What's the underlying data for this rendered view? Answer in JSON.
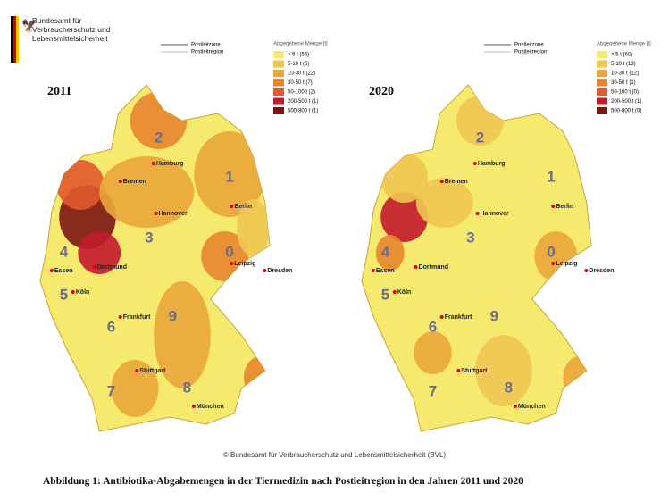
{
  "header": {
    "agency": [
      "Bundesamt für",
      "Verbraucherschutz und",
      "Lebensmittelsicherheit"
    ]
  },
  "line_legend": [
    "Postleitzone",
    "Postleitregion"
  ],
  "legend_title": "Abgegebene Menge [t]",
  "legend_colors": [
    "#f6ea6e",
    "#f1c753",
    "#eba63b",
    "#e8862f",
    "#e1592c",
    "#c41a2d",
    "#7c1513"
  ],
  "maps": [
    {
      "year": "2011",
      "legend": [
        "< 5 t (56)",
        "5-10 t (6)",
        "10-30 t (22)",
        "30-50 t (7)",
        "50-100 t (2)",
        "200-500 t (1)",
        "500-800 t (1)"
      ]
    },
    {
      "year": "2020",
      "legend": [
        "< 5 t (68)",
        "5-10 t (13)",
        "10-30 t (12)",
        "30-50 t (1)",
        "50-100 t (0)",
        "200-500 t (1)",
        "500-800 t (0)"
      ]
    }
  ],
  "zones": [
    "0",
    "1",
    "2",
    "3",
    "4",
    "5",
    "6",
    "7",
    "8",
    "9"
  ],
  "cities": [
    "Hamburg",
    "Bremen",
    "Hannover",
    "Berlin",
    "Essen",
    "Dortmund",
    "Köln",
    "Leipzig",
    "Dresden",
    "Frankfurt",
    "Stuttgart",
    "München"
  ],
  "copyright": "© Bundesamt für Verbraucherschutz und Lebensmittelsicherheit (BVL)",
  "caption": "Abbildung 1: Antibiotika-Abgabemengen in der Tiermedizin nach Postleitregion in den Jahren 2011 und 2020"
}
